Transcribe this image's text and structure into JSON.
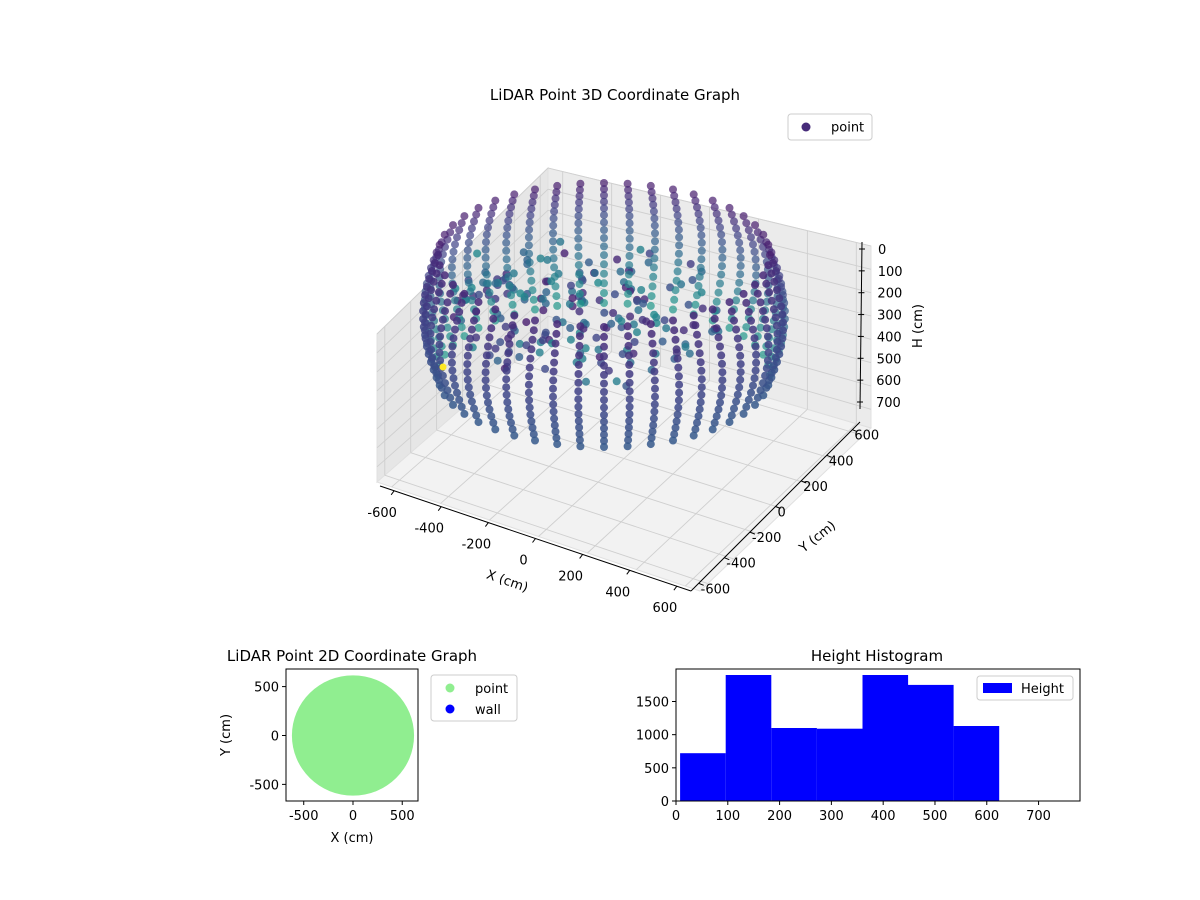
{
  "figure": {
    "background": "#ffffff"
  },
  "chart_data": [
    {
      "id": "lidar-3d",
      "type": "scatter",
      "projection": "3d",
      "title": "LiDAR Point 3D Coordinate Graph",
      "xlabel": "X (cm)",
      "ylabel": "Y (cm)",
      "zlabel": "H (cm)",
      "xlim": [
        -660,
        660
      ],
      "ylim": [
        -660,
        660
      ],
      "zlim": [
        0,
        780
      ],
      "z_inverted": true,
      "xticks": [
        -600,
        -400,
        -200,
        0,
        200,
        400,
        600
      ],
      "yticks": [
        -600,
        -400,
        -200,
        0,
        200,
        400,
        600
      ],
      "zticks": [
        0,
        100,
        200,
        300,
        400,
        500,
        600,
        700
      ],
      "grid": true,
      "legend": {
        "position": "top-right",
        "entries": [
          {
            "label": "point",
            "color": "#472c7a"
          }
        ]
      },
      "colormap": "viridis",
      "point_cloud": {
        "shape": "ring wall",
        "radius_range": [
          450,
          620
        ],
        "height_range": [
          0,
          640
        ],
        "columns": 44,
        "levels": 16,
        "interior_points": 180,
        "outlier": {
          "x": -610,
          "y": -80,
          "h": 680,
          "color": "#fde725"
        }
      }
    },
    {
      "id": "lidar-2d",
      "type": "scatter",
      "title": "LiDAR Point 2D Coordinate Graph",
      "xlabel": "X (cm)",
      "ylabel": "Y (cm)",
      "xlim": [
        -680,
        660
      ],
      "ylim": [
        -670,
        680
      ],
      "xticks": [
        -500,
        0,
        500
      ],
      "yticks": [
        -500,
        0,
        500
      ],
      "legend": {
        "position": "outside-right",
        "entries": [
          {
            "label": "point",
            "color": "#90ee90"
          },
          {
            "label": "wall",
            "color": "#0000ff"
          }
        ]
      },
      "series": [
        {
          "name": "point",
          "color": "#90ee90",
          "shape": "filled disc",
          "center": [
            0,
            0
          ],
          "radius": 620
        },
        {
          "name": "wall",
          "color": "#0000ff",
          "values": []
        }
      ]
    },
    {
      "id": "height-hist",
      "type": "bar",
      "title": "Height Histogram",
      "xlim": [
        0,
        780
      ],
      "ylim": [
        0,
        1990
      ],
      "xticks": [
        0,
        100,
        200,
        300,
        400,
        500,
        600,
        700
      ],
      "yticks": [
        0,
        500,
        1000,
        1500
      ],
      "color": "#0000ff",
      "legend": {
        "position": "top-right",
        "entries": [
          {
            "label": "Height",
            "color": "#0000ff"
          }
        ]
      },
      "bins": [
        {
          "start": 8,
          "end": 96,
          "count": 720
        },
        {
          "start": 96,
          "end": 184,
          "count": 1900
        },
        {
          "start": 184,
          "end": 272,
          "count": 1100
        },
        {
          "start": 272,
          "end": 360,
          "count": 1090
        },
        {
          "start": 360,
          "end": 448,
          "count": 1900
        },
        {
          "start": 448,
          "end": 536,
          "count": 1750
        },
        {
          "start": 536,
          "end": 624,
          "count": 1130
        }
      ]
    }
  ]
}
